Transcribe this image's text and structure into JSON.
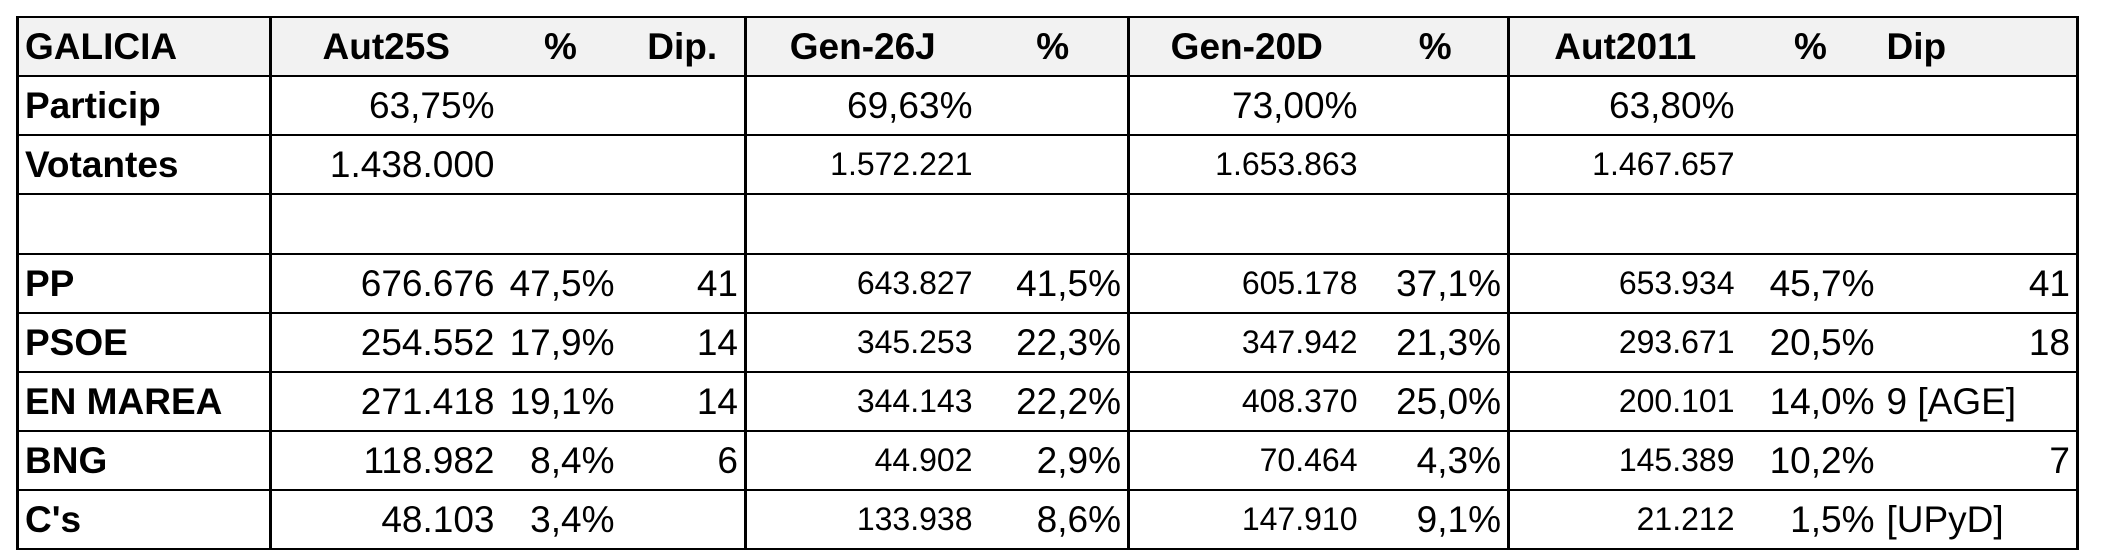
{
  "header": {
    "region": "GALICIA",
    "aut25s": "Aut25S",
    "aut25s_pct": "%",
    "aut25s_dip": "Dip.",
    "gen26j": "Gen-26J",
    "gen26j_pct": "%",
    "gen20d": "Gen-20D",
    "gen20d_pct": "%",
    "aut2011": "Aut2011",
    "aut2011_pct": "%",
    "aut2011_dip": "Dip"
  },
  "particip": {
    "label": "Particip",
    "aut25s": "63,75%",
    "gen26j": "69,63%",
    "gen20d": "73,00%",
    "aut2011": "63,80%"
  },
  "votantes": {
    "label": "Votantes",
    "aut25s": "1.438.000",
    "gen26j": "1.572.221",
    "gen20d": "1.653.863",
    "aut2011": "1.467.657"
  },
  "parties": [
    {
      "name": "PP",
      "aut25s_votes": "676.676",
      "aut25s_pct": "47,5%",
      "aut25s_dip": "41",
      "gen26j_votes": "643.827",
      "gen26j_pct": "41,5%",
      "gen20d_votes": "605.178",
      "gen20d_pct": "37,1%",
      "aut2011_votes": "653.934",
      "aut2011_pct": "45,7%",
      "aut2011_dip": "41"
    },
    {
      "name": "PSOE",
      "aut25s_votes": "254.552",
      "aut25s_pct": "17,9%",
      "aut25s_dip": "14",
      "gen26j_votes": "345.253",
      "gen26j_pct": "22,3%",
      "gen20d_votes": "347.942",
      "gen20d_pct": "21,3%",
      "aut2011_votes": "293.671",
      "aut2011_pct": "20,5%",
      "aut2011_dip": "18"
    },
    {
      "name": "EN MAREA",
      "aut25s_votes": "271.418",
      "aut25s_pct": "19,1%",
      "aut25s_dip": "14",
      "gen26j_votes": "344.143",
      "gen26j_pct": "22,2%",
      "gen20d_votes": "408.370",
      "gen20d_pct": "25,0%",
      "aut2011_votes": "200.101",
      "aut2011_pct": "14,0%",
      "aut2011_dip": "9 [AGE]"
    },
    {
      "name": "BNG",
      "aut25s_votes": "118.982",
      "aut25s_pct": "8,4%",
      "aut25s_dip": "6",
      "gen26j_votes": "44.902",
      "gen26j_pct": "2,9%",
      "gen20d_votes": "70.464",
      "gen20d_pct": "4,3%",
      "aut2011_votes": "145.389",
      "aut2011_pct": "10,2%",
      "aut2011_dip": "7"
    },
    {
      "name": "C's",
      "aut25s_votes": "48.103",
      "aut25s_pct": "3,4%",
      "aut25s_dip": "",
      "gen26j_votes": "133.938",
      "gen26j_pct": "8,6%",
      "gen20d_votes": "147.910",
      "gen20d_pct": "9,1%",
      "aut2011_votes": "21.212",
      "aut2011_pct": "1,5%",
      "aut2011_dip": "[UPyD]"
    }
  ]
}
